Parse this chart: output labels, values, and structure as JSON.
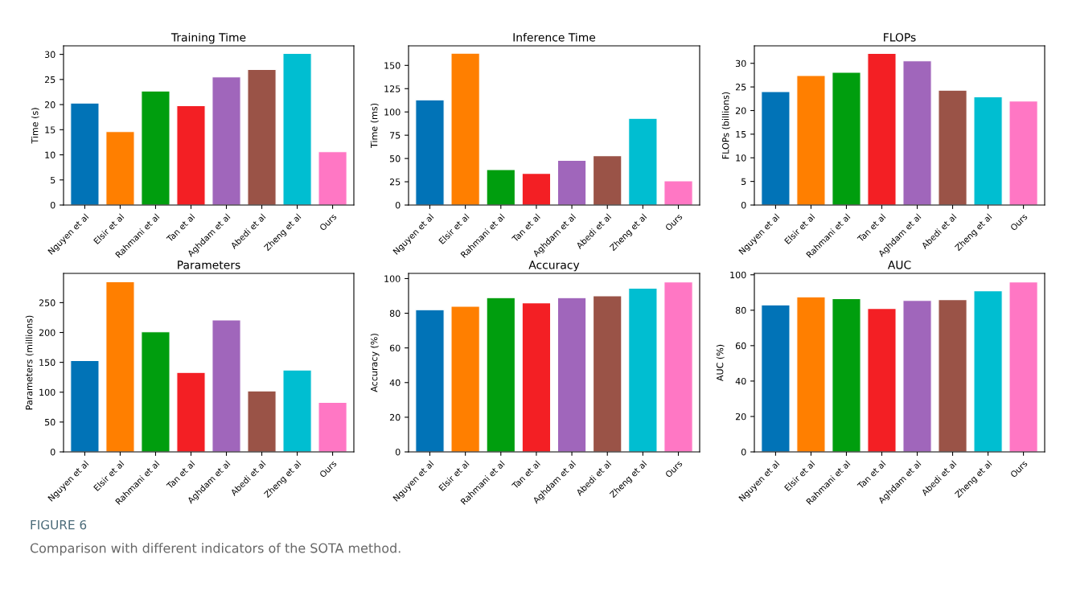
{
  "chart_data": [
    {
      "type": "bar",
      "title": "Training Time",
      "ylabel": "Time (s)",
      "categories": [
        "Nguyen et al",
        "Elsir et al",
        "Rahmani et al",
        "Tan et al",
        "Aghdam et al",
        "Abedi et al",
        "Zheng et al",
        "Ours"
      ],
      "values": [
        20.3,
        14.6,
        22.7,
        19.8,
        25.5,
        27.0,
        30.2,
        10.6
      ],
      "colors": [
        "#0173b7",
        "#ff7f00",
        "#009e0e",
        "#f31f24",
        "#a066bb",
        "#9a5347",
        "#00bed1",
        "#ff77c4"
      ],
      "ylim": [
        0,
        31.7
      ],
      "yticks": [
        0,
        5,
        10,
        15,
        20,
        25,
        30
      ]
    },
    {
      "type": "bar",
      "title": "Inference Time",
      "ylabel": "Time (ms)",
      "categories": [
        "Nguyen et al",
        "Elsir et al",
        "Rahmani et al",
        "Tan et al",
        "Aghdam et al",
        "Abedi et al",
        "Zheng et al",
        "Ours"
      ],
      "values": [
        113,
        163,
        38,
        34,
        48,
        53,
        93,
        26
      ],
      "colors": [
        "#0173b7",
        "#ff7f00",
        "#009e0e",
        "#f31f24",
        "#a066bb",
        "#9a5347",
        "#00bed1",
        "#ff77c4"
      ],
      "ylim": [
        0,
        171
      ],
      "yticks": [
        0,
        25,
        50,
        75,
        100,
        125,
        150
      ]
    },
    {
      "type": "bar",
      "title": "FLOPs",
      "ylabel": "FLOPs (billions)",
      "categories": [
        "Nguyen et al",
        "Elsir et al",
        "Rahmani et al",
        "Tan et al",
        "Aghdam et al",
        "Abedi et al",
        "Zheng et al",
        "Ours"
      ],
      "values": [
        24.0,
        27.4,
        28.1,
        32.1,
        30.5,
        24.3,
        22.9,
        22.0
      ],
      "colors": [
        "#0173b7",
        "#ff7f00",
        "#009e0e",
        "#f31f24",
        "#a066bb",
        "#9a5347",
        "#00bed1",
        "#ff77c4"
      ],
      "ylim": [
        0,
        33.7
      ],
      "yticks": [
        0,
        5,
        10,
        15,
        20,
        25,
        30
      ]
    },
    {
      "type": "bar",
      "title": "Parameters",
      "ylabel": "Parameters (millions)",
      "categories": [
        "Nguyen et al",
        "Elsir et al",
        "Rahmani et al",
        "Tan et al",
        "Aghdam et al",
        "Abedi et al",
        "Zheng et al",
        "Ours"
      ],
      "values": [
        153,
        285,
        201,
        133,
        221,
        102,
        137,
        83
      ],
      "colors": [
        "#0173b7",
        "#ff7f00",
        "#009e0e",
        "#f31f24",
        "#a066bb",
        "#9a5347",
        "#00bed1",
        "#ff77c4"
      ],
      "ylim": [
        0,
        299
      ],
      "yticks": [
        0,
        50,
        100,
        150,
        200,
        250
      ]
    },
    {
      "type": "bar",
      "title": "Accuracy",
      "ylabel": "Accuracy (%)",
      "categories": [
        "Nguyen et al",
        "Elsir et al",
        "Rahmani et al",
        "Tan et al",
        "Aghdam et al",
        "Abedi et al",
        "Zheng et al",
        "Ours"
      ],
      "values": [
        82,
        84,
        89,
        86,
        89,
        90,
        94.5,
        98
      ],
      "colors": [
        "#0173b7",
        "#ff7f00",
        "#009e0e",
        "#f31f24",
        "#a066bb",
        "#9a5347",
        "#00bed1",
        "#ff77c4"
      ],
      "ylim": [
        0,
        103
      ],
      "yticks": [
        0,
        20,
        40,
        60,
        80,
        100
      ]
    },
    {
      "type": "bar",
      "title": "AUC",
      "ylabel": "AUC (%)",
      "categories": [
        "Nguyen et al",
        "Elsir et al",
        "Rahmani et al",
        "Tan et al",
        "Aghdam et al",
        "Abedi et al",
        "Zheng et al",
        "Ours"
      ],
      "values": [
        83,
        87.5,
        86.5,
        81,
        85.5,
        86,
        91,
        96
      ],
      "colors": [
        "#0173b7",
        "#ff7f00",
        "#009e0e",
        "#f31f24",
        "#a066bb",
        "#9a5347",
        "#00bed1",
        "#ff77c4"
      ],
      "ylim": [
        0,
        100.8
      ],
      "yticks": [
        0,
        20,
        40,
        60,
        80,
        100
      ]
    },
    {
      "type": "other",
      "annotations": [
        "FIGURE 6",
        "Comparison with different indicators of the SOTA method."
      ]
    }
  ]
}
